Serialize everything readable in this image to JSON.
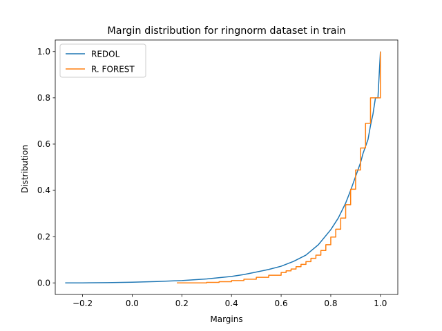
{
  "chart_data": {
    "type": "line",
    "title": "Margin distribution for ringnorm dataset in train",
    "xlabel": "Margins",
    "ylabel": "Distribution",
    "xlim": [
      -0.31,
      1.07
    ],
    "ylim": [
      -0.05,
      1.05
    ],
    "xticks": [
      -0.2,
      0.0,
      0.2,
      0.4,
      0.6,
      0.8,
      1.0
    ],
    "xtick_labels": [
      "−0.2",
      "0.0",
      "0.2",
      "0.4",
      "0.6",
      "0.8",
      "1.0"
    ],
    "yticks": [
      0.0,
      0.2,
      0.4,
      0.6,
      0.8,
      1.0
    ],
    "ytick_labels": [
      "0.0",
      "0.2",
      "0.4",
      "0.6",
      "0.8",
      "1.0"
    ],
    "grid": false,
    "legend_position": "upper-left",
    "series": [
      {
        "name": "REDOL",
        "color": "#1f77b4",
        "step": false,
        "x": [
          -0.27,
          -0.2,
          -0.1,
          0.0,
          0.1,
          0.2,
          0.3,
          0.4,
          0.45,
          0.5,
          0.55,
          0.6,
          0.65,
          0.7,
          0.75,
          0.8,
          0.83,
          0.86,
          0.88,
          0.9,
          0.92,
          0.93,
          0.95,
          0.96,
          0.97,
          0.98,
          0.99,
          1.0
        ],
        "y": [
          0.0,
          0.0,
          0.001,
          0.003,
          0.006,
          0.01,
          0.017,
          0.028,
          0.036,
          0.047,
          0.058,
          0.072,
          0.093,
          0.12,
          0.165,
          0.23,
          0.28,
          0.345,
          0.4,
          0.46,
          0.52,
          0.56,
          0.62,
          0.68,
          0.73,
          0.8,
          0.8,
          1.0
        ]
      },
      {
        "name": "R. FOREST",
        "color": "#ff7f0e",
        "step": true,
        "x": [
          0.18,
          0.3,
          0.35,
          0.4,
          0.45,
          0.5,
          0.55,
          0.6,
          0.62,
          0.64,
          0.66,
          0.68,
          0.7,
          0.72,
          0.74,
          0.76,
          0.78,
          0.8,
          0.82,
          0.84,
          0.86,
          0.88,
          0.9,
          0.92,
          0.94,
          0.96,
          0.98,
          1.0
        ],
        "y": [
          0.0,
          0.002,
          0.005,
          0.01,
          0.016,
          0.024,
          0.033,
          0.045,
          0.052,
          0.06,
          0.07,
          0.08,
          0.092,
          0.106,
          0.12,
          0.14,
          0.165,
          0.198,
          0.232,
          0.28,
          0.338,
          0.405,
          0.488,
          0.583,
          0.69,
          0.8,
          0.8,
          1.0
        ]
      }
    ]
  }
}
